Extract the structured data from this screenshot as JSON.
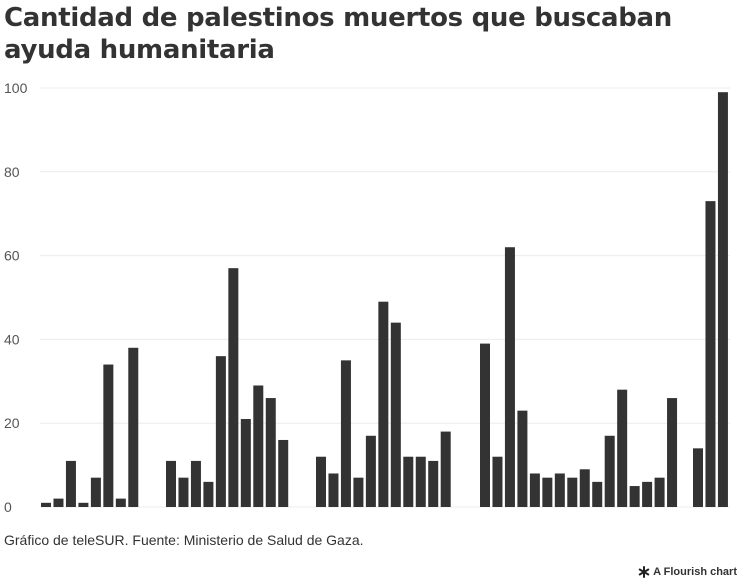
{
  "chart_data": {
    "type": "bar",
    "title": "Cantidad de palestinos muertos que buscaban ayuda humanitaria",
    "xlabel": "",
    "ylabel": "",
    "ylim": [
      0,
      100
    ],
    "yticks": [
      "0",
      "20",
      "40",
      "60",
      "80",
      "100"
    ],
    "grid": true,
    "legend": "none",
    "bar_color": "#333333",
    "groups": [
      [
        1,
        2,
        11,
        1,
        7,
        34,
        2,
        38
      ],
      [
        11,
        7,
        11,
        6,
        36,
        57,
        21,
        29,
        26,
        16
      ],
      [
        12,
        8,
        35,
        7,
        17,
        49,
        44,
        12,
        12,
        11,
        18
      ],
      [
        39,
        12,
        62,
        23,
        8,
        7,
        8,
        7,
        9,
        6,
        17,
        28,
        5,
        6,
        7,
        26
      ],
      [
        14,
        73,
        99
      ]
    ]
  },
  "footer": {
    "source": "Gráfico de teleSUR. Fuente: Ministerio de Salud de Gaza.",
    "credit": "A Flourish chart",
    "credit_icon": "flourish-asterisk-icon"
  }
}
